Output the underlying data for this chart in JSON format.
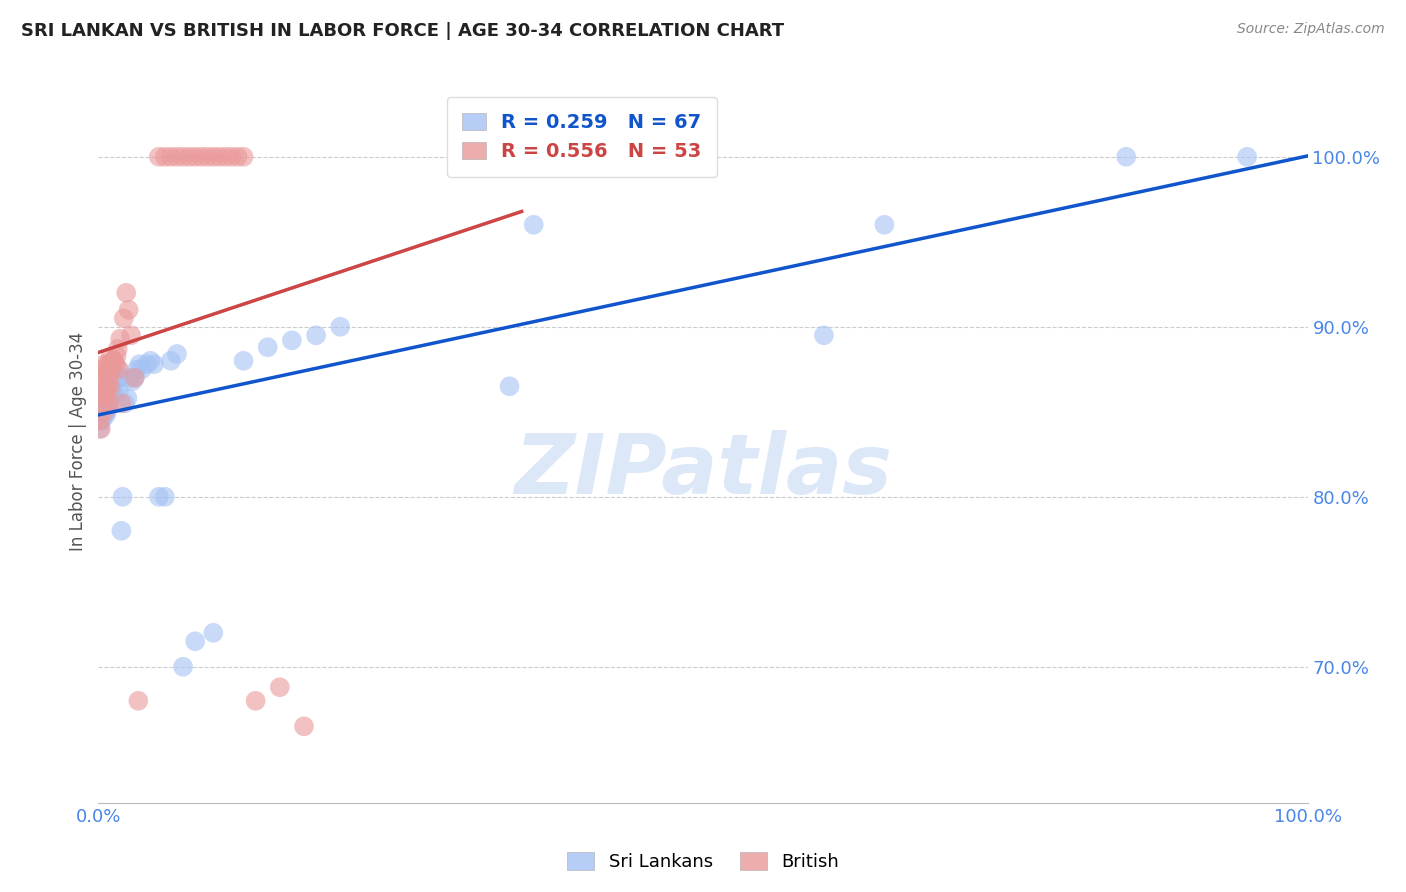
{
  "title": "SRI LANKAN VS BRITISH IN LABOR FORCE | AGE 30-34 CORRELATION CHART",
  "source": "Source: ZipAtlas.com",
  "ylabel": "In Labor Force | Age 30-34",
  "legend_blue_r": "0.259",
  "legend_blue_n": "67",
  "legend_pink_r": "0.556",
  "legend_pink_n": "53",
  "watermark": "ZIPatlas",
  "blue_color": "#a4c2f4",
  "pink_color": "#ea9999",
  "blue_line_color": "#1155cc",
  "pink_line_color": "#cc4444",
  "background_color": "#ffffff",
  "grid_color": "#cccccc",
  "title_color": "#222222",
  "axis_label_color": "#4a86e8",
  "watermark_color": "#dce8f8",
  "ylabel_color": "#555555",
  "blue_scatter_x": [
    0.001,
    0.001,
    0.002,
    0.002,
    0.002,
    0.003,
    0.003,
    0.003,
    0.004,
    0.004,
    0.004,
    0.005,
    0.005,
    0.005,
    0.006,
    0.006,
    0.006,
    0.007,
    0.007,
    0.007,
    0.008,
    0.008,
    0.009,
    0.009,
    0.01,
    0.01,
    0.011,
    0.011,
    0.012,
    0.013,
    0.013,
    0.014,
    0.015,
    0.016,
    0.017,
    0.018,
    0.019,
    0.02,
    0.022,
    0.024,
    0.026,
    0.028,
    0.03,
    0.032,
    0.034,
    0.036,
    0.04,
    0.043,
    0.046,
    0.05,
    0.055,
    0.06,
    0.065,
    0.07,
    0.08,
    0.095,
    0.12,
    0.14,
    0.16,
    0.18,
    0.2,
    0.34,
    0.36,
    0.6,
    0.65,
    0.85,
    0.95
  ],
  "blue_scatter_y": [
    0.855,
    0.84,
    0.86,
    0.845,
    0.855,
    0.858,
    0.85,
    0.845,
    0.855,
    0.85,
    0.86,
    0.86,
    0.85,
    0.855,
    0.855,
    0.848,
    0.862,
    0.858,
    0.85,
    0.855,
    0.862,
    0.855,
    0.86,
    0.855,
    0.865,
    0.858,
    0.865,
    0.87,
    0.87,
    0.86,
    0.865,
    0.868,
    0.87,
    0.875,
    0.862,
    0.87,
    0.78,
    0.8,
    0.855,
    0.858,
    0.87,
    0.868,
    0.87,
    0.875,
    0.878,
    0.875,
    0.878,
    0.88,
    0.878,
    0.8,
    0.8,
    0.88,
    0.884,
    0.7,
    0.715,
    0.72,
    0.88,
    0.888,
    0.892,
    0.895,
    0.9,
    0.865,
    0.96,
    0.895,
    0.96,
    1.0,
    1.0
  ],
  "pink_scatter_x": [
    0.001,
    0.001,
    0.002,
    0.002,
    0.003,
    0.003,
    0.004,
    0.004,
    0.005,
    0.005,
    0.006,
    0.006,
    0.007,
    0.007,
    0.008,
    0.008,
    0.009,
    0.009,
    0.01,
    0.01,
    0.011,
    0.012,
    0.013,
    0.014,
    0.015,
    0.016,
    0.017,
    0.018,
    0.019,
    0.021,
    0.023,
    0.025,
    0.027,
    0.03,
    0.033,
    0.05,
    0.055,
    0.06,
    0.065,
    0.07,
    0.075,
    0.08,
    0.085,
    0.09,
    0.095,
    0.1,
    0.105,
    0.11,
    0.115,
    0.12,
    0.13,
    0.15,
    0.17
  ],
  "pink_scatter_y": [
    0.86,
    0.845,
    0.87,
    0.84,
    0.875,
    0.86,
    0.87,
    0.855,
    0.878,
    0.85,
    0.87,
    0.86,
    0.875,
    0.862,
    0.878,
    0.865,
    0.855,
    0.87,
    0.882,
    0.865,
    0.875,
    0.88,
    0.88,
    0.878,
    0.883,
    0.887,
    0.875,
    0.893,
    0.855,
    0.905,
    0.92,
    0.91,
    0.895,
    0.87,
    0.68,
    1.0,
    1.0,
    1.0,
    1.0,
    1.0,
    1.0,
    1.0,
    1.0,
    1.0,
    1.0,
    1.0,
    1.0,
    1.0,
    1.0,
    1.0,
    0.68,
    0.688,
    0.665
  ],
  "xlim": [
    0.0,
    1.0
  ],
  "ylim": [
    0.62,
    1.045
  ],
  "ytick_vals": [
    0.7,
    0.8,
    0.9,
    1.0
  ],
  "ytick_labels": [
    "70.0%",
    "80.0%",
    "90.0%",
    "100.0%"
  ],
  "xtick_vals": [
    0.0,
    0.1,
    0.2,
    0.3,
    0.4,
    0.5,
    0.6,
    0.7,
    0.8,
    0.9,
    1.0
  ],
  "xtick_labels_show": {
    "0": "0.0%",
    "10": "100.0%"
  }
}
